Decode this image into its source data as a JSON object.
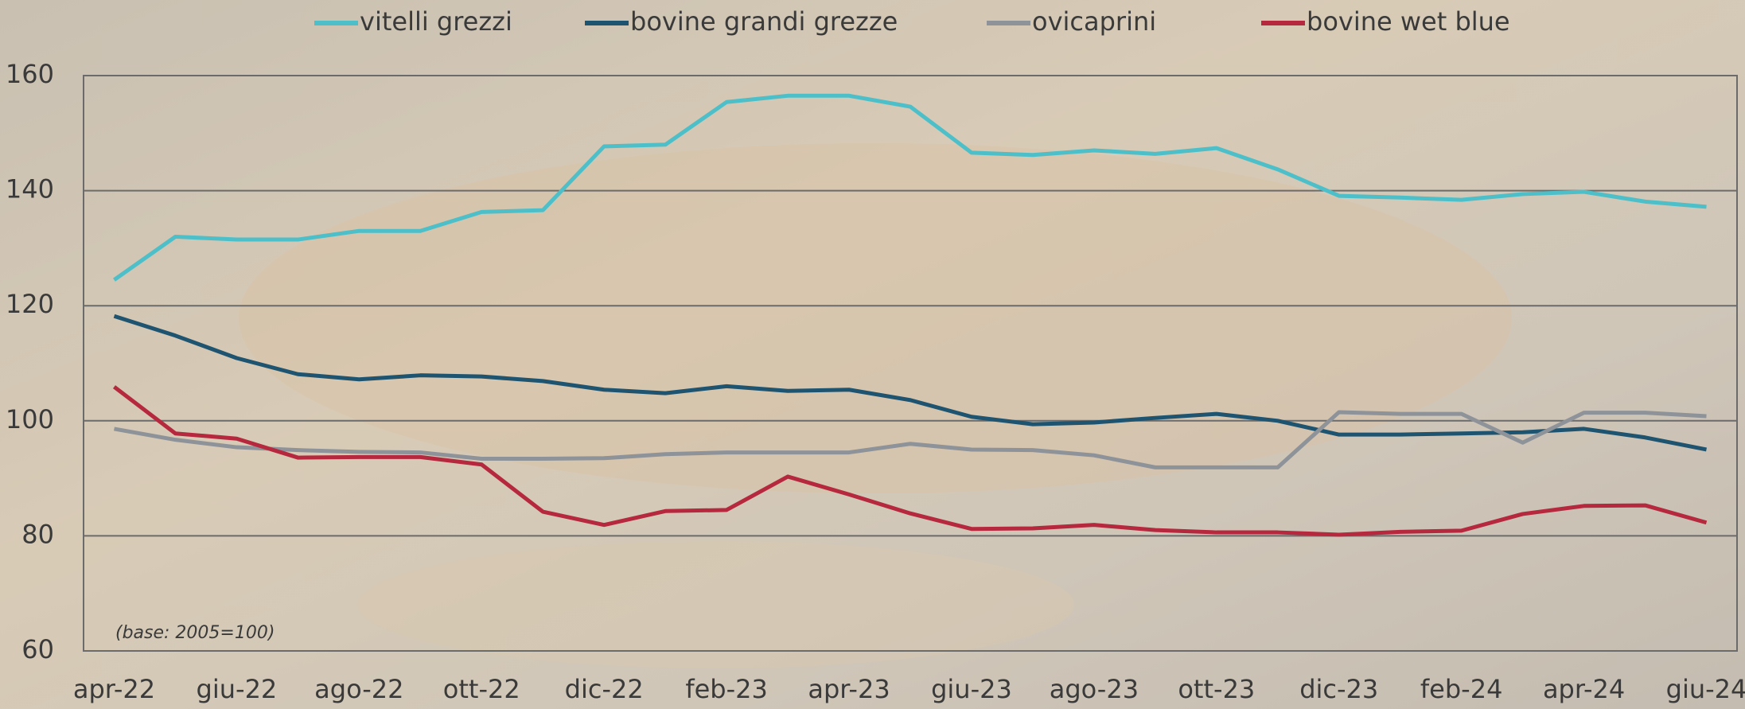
{
  "chart_data": {
    "type": "line",
    "categories": [
      "apr-22",
      null,
      "giu-22",
      null,
      "ago-22",
      null,
      "ott-22",
      null,
      "dic-22",
      null,
      "feb-23",
      null,
      "apr-23",
      null,
      "giu-23",
      null,
      "ago-23",
      null,
      "ott-23",
      null,
      "dic-23",
      null,
      "feb-24",
      null,
      "apr-24",
      null,
      "giu-24"
    ],
    "series": [
      {
        "name": "vitelli grezzi",
        "color": "#4dbfc9",
        "values": [
          124.5,
          132,
          131.5,
          131.5,
          133,
          133,
          136.3,
          136.6,
          147.7,
          148,
          155.4,
          156.5,
          156.5,
          154.6,
          146.6,
          146.2,
          147,
          146.4,
          147.4,
          143.7,
          139.1,
          138.8,
          138.4,
          139.4,
          139.8,
          138.1,
          137.2
        ]
      },
      {
        "name": "bovine grandi grezze",
        "color": "#1f5470",
        "values": [
          118.2,
          114.8,
          110.9,
          108.1,
          107.2,
          107.9,
          107.7,
          106.9,
          105.4,
          104.8,
          106,
          105.2,
          105.4,
          103.6,
          100.7,
          99.4,
          99.7,
          100.5,
          101.2,
          100,
          97.6,
          97.6,
          97.8,
          98,
          98.6,
          97.1,
          95
        ]
      },
      {
        "name": "ovicaprini",
        "color": "#8e9399",
        "values": [
          98.6,
          96.7,
          95.4,
          94.9,
          94.6,
          94.5,
          93.4,
          93.4,
          93.5,
          94.2,
          94.5,
          94.5,
          94.5,
          96,
          95,
          94.9,
          94,
          91.9,
          91.9,
          91.9,
          101.5,
          101.2,
          101.2,
          96.2,
          101.4,
          101.4,
          100.8
        ]
      },
      {
        "name": "bovine wet blue",
        "color": "#b5283e",
        "values": [
          105.9,
          97.8,
          96.9,
          93.6,
          93.7,
          93.7,
          92.4,
          84.2,
          81.9,
          84.3,
          84.5,
          90.3,
          87.2,
          83.9,
          81.2,
          81.3,
          81.9,
          81,
          80.6,
          80.6,
          80.2,
          80.7,
          80.9,
          83.8,
          85.2,
          85.3,
          82.3
        ]
      }
    ],
    "annotation": "(base: 2005=100)",
    "ylim": [
      60,
      160
    ],
    "yticks": [
      60,
      80,
      100,
      120,
      140,
      160
    ],
    "grid": true
  }
}
